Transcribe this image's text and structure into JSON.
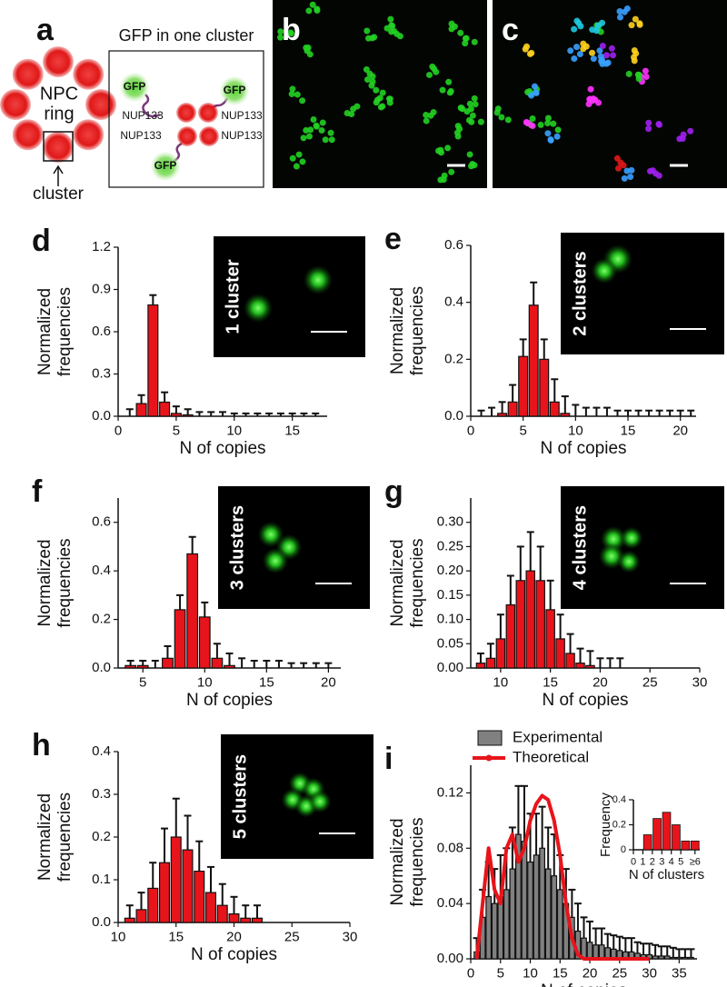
{
  "figure": {
    "panel_labels": [
      "a",
      "b",
      "c"
    ],
    "npc": [
      "NPC",
      "ring"
    ],
    "cluster": "cluster",
    "box_title": "GFP in one cluster",
    "gfp": [
      "GFP",
      "GFP",
      "GFP"
    ],
    "nup": [
      "NUP133",
      "NUP133",
      "NUP133",
      "NUP133"
    ]
  },
  "chart_data": [
    {
      "type": "bar",
      "panel": "d",
      "annotation": "1 cluster",
      "x_label": "N of copies",
      "y_label": [
        "Normalized",
        "frequencies"
      ],
      "xlim": [
        0,
        18
      ],
      "xticks": [
        0,
        5,
        10,
        15
      ],
      "ylim": [
        0,
        1.2
      ],
      "yticks": [
        {
          "value": 0,
          "label": "0.0"
        },
        0.3,
        0.6,
        0.9,
        1.2
      ],
      "x": [
        1,
        2,
        3,
        4,
        5,
        6,
        7,
        8,
        9,
        10,
        11,
        12,
        13,
        14,
        15,
        16,
        17
      ],
      "series": [
        {
          "color": "#e8141b",
          "values": [
            0,
            0.09,
            0.79,
            0.1,
            0.02,
            0.01,
            0,
            0,
            0,
            0,
            0,
            0,
            0,
            0,
            0,
            0,
            0
          ],
          "errors": [
            0.05,
            0.06,
            0.07,
            0.07,
            0.05,
            0.04,
            0.03,
            0.03,
            0.03,
            0.02,
            0.02,
            0.02,
            0.02,
            0.02,
            0.02,
            0.02,
            0.02
          ]
        }
      ]
    },
    {
      "type": "bar",
      "panel": "e",
      "annotation": "2 clusters",
      "x_label": "N of copies",
      "y_label": [
        "Normalized",
        "frequencies"
      ],
      "xlim": [
        0,
        21.5
      ],
      "xticks": [
        0,
        5,
        10,
        15,
        20
      ],
      "ylim": [
        0,
        0.6
      ],
      "yticks": [
        {
          "value": 0,
          "label": "0.0"
        },
        0.2,
        0.4,
        0.6
      ],
      "x": [
        1,
        2,
        3,
        4,
        5,
        6,
        7,
        8,
        9,
        10,
        11,
        12,
        13,
        14,
        15,
        16,
        17,
        18,
        19,
        20,
        21
      ],
      "series": [
        {
          "color": "#e8141b",
          "values": [
            0,
            0,
            0.01,
            0.05,
            0.21,
            0.39,
            0.2,
            0.05,
            0.01,
            0,
            0,
            0,
            0,
            0,
            0,
            0,
            0,
            0,
            0,
            0,
            0
          ],
          "errors": [
            0.02,
            0.03,
            0.04,
            0.06,
            0.06,
            0.08,
            0.07,
            0.08,
            0.06,
            0.04,
            0.03,
            0.03,
            0.03,
            0.02,
            0.02,
            0.02,
            0.02,
            0.02,
            0.02,
            0.02,
            0.02
          ]
        }
      ]
    },
    {
      "type": "bar",
      "panel": "f",
      "annotation": "3 clusters",
      "x_label": "N of copies",
      "y_label": [
        "Normalized",
        "frequencies"
      ],
      "xlim": [
        3,
        21
      ],
      "xticks": [
        5,
        10,
        15,
        20
      ],
      "ylim": [
        0,
        0.7
      ],
      "yticks": [
        {
          "value": 0,
          "label": "0.0"
        },
        0.2,
        0.4,
        0.6
      ],
      "x": [
        4,
        5,
        6,
        7,
        8,
        9,
        10,
        11,
        12,
        13,
        14,
        15,
        16,
        17,
        18,
        19,
        20
      ],
      "series": [
        {
          "color": "#e8141b",
          "values": [
            0.01,
            0.01,
            0,
            0.04,
            0.24,
            0.47,
            0.21,
            0.04,
            0.01,
            0,
            0,
            0,
            0,
            0,
            0,
            0,
            0
          ],
          "errors": [
            0.02,
            0.02,
            0.03,
            0.05,
            0.06,
            0.07,
            0.06,
            0.06,
            0.05,
            0.04,
            0.03,
            0.03,
            0.03,
            0.02,
            0.02,
            0.02,
            0.02
          ]
        }
      ]
    },
    {
      "type": "bar",
      "panel": "g",
      "annotation": "4 clusters",
      "x_label": "N of copies",
      "y_label": [
        "Normalized",
        "frequencies"
      ],
      "xlim": [
        7,
        30
      ],
      "xticks": [
        10,
        15,
        20,
        25,
        30
      ],
      "ylim": [
        0,
        0.35
      ],
      "yticks": [
        {
          "value": 0,
          "label": "0.00"
        },
        0.05,
        {
          "value": 0.1,
          "label": "0.10"
        },
        0.15,
        {
          "value": 0.2,
          "label": "0.20"
        },
        0.25,
        {
          "value": 0.3,
          "label": "0.30"
        }
      ],
      "x": [
        8,
        9,
        10,
        11,
        12,
        13,
        14,
        15,
        16,
        17,
        18,
        19,
        20,
        21,
        22
      ],
      "series": [
        {
          "color": "#e8141b",
          "values": [
            0.01,
            0.02,
            0.06,
            0.13,
            0.18,
            0.2,
            0.18,
            0.12,
            0.06,
            0.03,
            0.01,
            0.005,
            0,
            0,
            0
          ],
          "errors": [
            0.02,
            0.03,
            0.05,
            0.06,
            0.07,
            0.08,
            0.07,
            0.06,
            0.05,
            0.04,
            0.03,
            0.03,
            0.02,
            0.02,
            0.02
          ]
        }
      ]
    },
    {
      "type": "bar",
      "panel": "h",
      "annotation": "5 clusters",
      "x_label": "N of copies",
      "y_label": [
        "Normalized",
        "frequencies"
      ],
      "xlim": [
        10,
        30
      ],
      "xticks": [
        10,
        15,
        20,
        25,
        30
      ],
      "ylim": [
        0,
        0.4
      ],
      "yticks": [
        {
          "value": 0,
          "label": "0.0"
        },
        0.1,
        0.2,
        0.3,
        0.4
      ],
      "x": [
        11,
        12,
        13,
        14,
        15,
        16,
        17,
        18,
        19,
        20,
        21,
        22
      ],
      "series": [
        {
          "color": "#e8141b",
          "values": [
            0.01,
            0.03,
            0.08,
            0.14,
            0.2,
            0.17,
            0.12,
            0.07,
            0.04,
            0.02,
            0.01,
            0.01
          ],
          "errors": [
            0.03,
            0.04,
            0.06,
            0.08,
            0.09,
            0.08,
            0.07,
            0.06,
            0.05,
            0.04,
            0.03,
            0.03
          ]
        }
      ]
    },
    {
      "type": "combo",
      "panel": "i",
      "x_label": "N of copies",
      "y_label": [
        "Normalized",
        "frequencies"
      ],
      "xlim": [
        0,
        38
      ],
      "xticks": [
        0,
        5,
        10,
        15,
        20,
        25,
        30,
        35
      ],
      "ylim": [
        0,
        0.14
      ],
      "yticks": [
        {
          "value": 0,
          "label": "0.00"
        },
        0.04,
        0.08,
        0.12
      ],
      "series": [
        {
          "name": "Experimental",
          "type": "bar",
          "color": "#808080",
          "x": [
            1,
            2,
            3,
            4,
            5,
            6,
            7,
            8,
            9,
            10,
            11,
            12,
            13,
            14,
            15,
            16,
            17,
            18,
            19,
            20,
            21,
            22,
            23,
            24,
            25,
            26,
            27,
            28,
            29,
            30,
            31,
            32,
            33,
            34,
            35,
            36,
            37
          ],
          "values": [
            0.005,
            0.03,
            0.045,
            0.04,
            0.045,
            0.05,
            0.065,
            0.09,
            0.085,
            0.07,
            0.075,
            0.08,
            0.065,
            0.06,
            0.05,
            0.04,
            0.03,
            0.02,
            0.015,
            0.012,
            0.01,
            0.01,
            0.008,
            0.007,
            0.006,
            0.005,
            0.005,
            0.004,
            0.003,
            0.003,
            0.002,
            0.002,
            0.002,
            0.001,
            0.001,
            0.001,
            0.001
          ],
          "errors": [
            0.01,
            0.02,
            0.025,
            0.025,
            0.03,
            0.03,
            0.03,
            0.035,
            0.04,
            0.035,
            0.03,
            0.03,
            0.03,
            0.03,
            0.025,
            0.025,
            0.02,
            0.02,
            0.015,
            0.015,
            0.012,
            0.012,
            0.01,
            0.01,
            0.01,
            0.01,
            0.01,
            0.008,
            0.008,
            0.008,
            0.008,
            0.007,
            0.007,
            0.007,
            0.006,
            0.006,
            0.006
          ]
        },
        {
          "name": "Theoretical",
          "type": "line",
          "color": "#e8141b",
          "x": [
            1,
            2,
            3,
            4,
            5,
            6,
            7,
            8,
            9,
            10,
            11,
            12,
            13,
            14,
            15,
            16,
            17,
            18,
            19,
            20,
            21,
            22,
            23,
            24,
            25,
            26,
            27,
            28,
            29,
            30
          ],
          "values": [
            0,
            0.04,
            0.08,
            0.05,
            0.04,
            0.08,
            0.09,
            0.07,
            0.08,
            0.1,
            0.112,
            0.118,
            0.115,
            0.1,
            0.075,
            0.04,
            0.015,
            0.003,
            0,
            0,
            0,
            0,
            0,
            0,
            0,
            0,
            0,
            0,
            0,
            0
          ]
        }
      ]
    },
    {
      "type": "bar",
      "x_label": "N of clusters",
      "y_label": [
        "Frequency"
      ],
      "xlim": [
        0,
        7
      ],
      "xticks": [
        0,
        1,
        2,
        3,
        4,
        5,
        {
          "value": 6.5,
          "label": "≥6"
        }
      ],
      "ylim": [
        0,
        0.4
      ],
      "yticks": [
        0,
        0.2,
        0.4
      ],
      "x": [
        1.5,
        2.5,
        3.5,
        4.5,
        5.5,
        6.5
      ],
      "series": [
        {
          "color": "#e8141b",
          "values": [
            0.12,
            0.25,
            0.3,
            0.2,
            0.07,
            0.07
          ]
        }
      ]
    }
  ]
}
